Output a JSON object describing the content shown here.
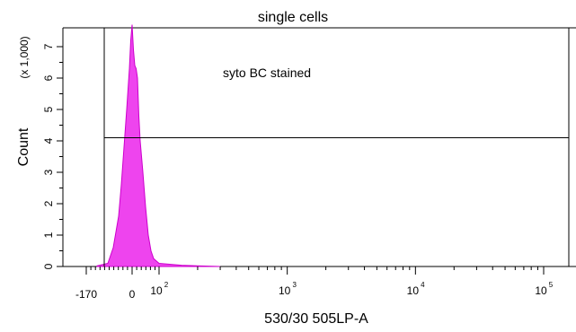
{
  "chart_data": {
    "type": "area",
    "title": "single cells",
    "xlabel": "530/30 505LP-A",
    "ylabel": "Count",
    "ylabel_multiplier": "(x 1,000)",
    "x_scale": "biexponential",
    "x_ticks": [
      {
        "value": -170,
        "label": "-170"
      },
      {
        "value": 0,
        "label": "0"
      },
      {
        "value": 100,
        "base": "10",
        "exp": "2"
      },
      {
        "value": 1000,
        "base": "10",
        "exp": "3"
      },
      {
        "value": 10000,
        "base": "10",
        "exp": "4"
      },
      {
        "value": 100000,
        "base": "10",
        "exp": "5"
      }
    ],
    "y_ticks": [
      0,
      1,
      2,
      3,
      4,
      5,
      6,
      7
    ],
    "ylim": [
      0,
      7.6
    ],
    "gate": {
      "label": "syto BC stained",
      "count_level": 4.1
    },
    "series": [
      {
        "color": "#ee44ee",
        "edge_color": "#cc00cc",
        "x": [
          -130,
          -90,
          -70,
          -50,
          -40,
          -30,
          -20,
          -10,
          -5,
          0,
          5,
          10,
          15,
          20,
          25,
          30,
          40,
          50,
          60,
          70,
          80,
          100,
          150,
          200,
          300
        ],
        "y": [
          0.02,
          0.1,
          0.6,
          1.6,
          2.6,
          3.8,
          5.0,
          6.3,
          7.2,
          7.7,
          6.9,
          6.4,
          6.3,
          6.0,
          4.8,
          4.0,
          3.0,
          1.9,
          1.0,
          0.5,
          0.25,
          0.1,
          0.04,
          0.02,
          0.0
        ]
      }
    ]
  }
}
